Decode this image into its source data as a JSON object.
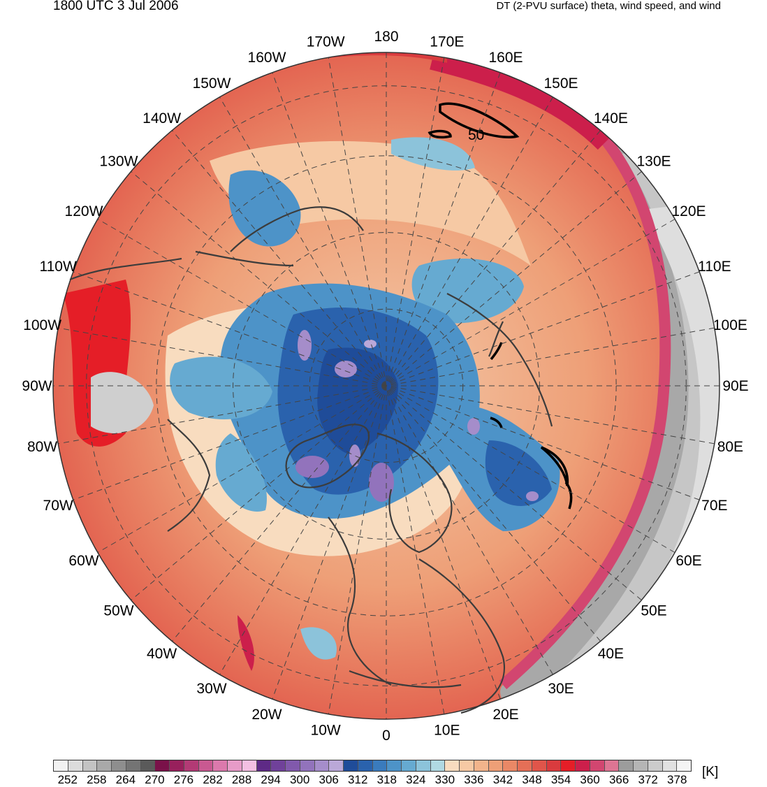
{
  "header": {
    "valid_time": "1800 UTC 3 Jul 2006",
    "title": "DT (2-PVU surface) theta, wind speed, and wind"
  },
  "map": {
    "projection": "north-polar-stereographic",
    "longitude_labels": [
      "180",
      "170E",
      "160E",
      "150E",
      "140E",
      "130E",
      "120E",
      "110E",
      "100E",
      "90E",
      "80E",
      "70E",
      "60E",
      "50E",
      "40E",
      "30E",
      "20E",
      "10E",
      "0",
      "10W",
      "20W",
      "30W",
      "40W",
      "50W",
      "60W",
      "70W",
      "80W",
      "90W",
      "100W",
      "110W",
      "120W",
      "130W",
      "140W",
      "150W",
      "160W",
      "170W"
    ],
    "contour_label": "50",
    "wind_speed_contour_color": "#000000",
    "coastline_color": "#3c3c3c",
    "graticule_color": "#444444"
  },
  "colorbar": {
    "unit": "[K]",
    "tick_labels": [
      "252",
      "258",
      "264",
      "270",
      "276",
      "282",
      "288",
      "294",
      "300",
      "306",
      "312",
      "318",
      "324",
      "330",
      "336",
      "342",
      "348",
      "354",
      "360",
      "366",
      "372",
      "378"
    ],
    "colors": [
      "#f2f2f2",
      "#dcdcdc",
      "#c3c3c3",
      "#a9a9a9",
      "#8e8e8e",
      "#747474",
      "#5a5a5a",
      "#7a1149",
      "#98205c",
      "#b33a75",
      "#c95991",
      "#db79ac",
      "#e79bc8",
      "#f3bfe2",
      "#5e2a86",
      "#70419a",
      "#8159ac",
      "#9273bc",
      "#a58dca",
      "#baa8d8",
      "#1f4c99",
      "#2a62ad",
      "#3a7bbd",
      "#4d93c8",
      "#66aad1",
      "#8cc3da",
      "#b0d9e2",
      "#f8dcbf",
      "#f6c9a4",
      "#f2b48b",
      "#ee9f77",
      "#ea8866",
      "#e56f57",
      "#e0554a",
      "#d93b3e",
      "#e51e27",
      "#cc1f4b",
      "#d24670",
      "#dd7593",
      "#9c9c9c",
      "#b5b5b5",
      "#cbcbcb",
      "#e1e1e1",
      "#f4f4f4"
    ]
  }
}
